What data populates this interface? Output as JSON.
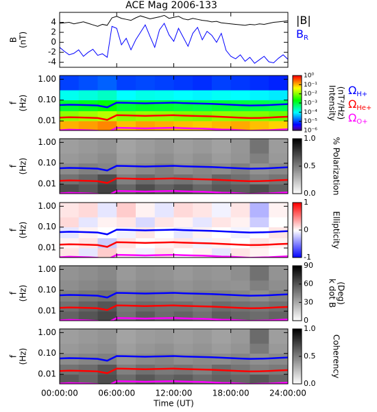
{
  "chart_data": [
    {
      "type": "line",
      "title": "ACE Mag 2006-133",
      "ylabel": [
        "B",
        "(nT)"
      ],
      "x": [
        0,
        0.5,
        1,
        1.5,
        2,
        2.5,
        3,
        3.5,
        4,
        4.5,
        5,
        5.5,
        6,
        6.5,
        7,
        7.5,
        8,
        8.5,
        9,
        9.5,
        10,
        10.5,
        11,
        11.5,
        12,
        12.5,
        13,
        13.5,
        14,
        14.5,
        15,
        15.5,
        16,
        16.5,
        17,
        17.5,
        18,
        18.5,
        19,
        19.5,
        20,
        20.5,
        21,
        21.5,
        22,
        22.5,
        23,
        23.5,
        24
      ],
      "xlim": [
        0,
        24
      ],
      "ylim": [
        -5,
        6
      ],
      "yticks": [
        4,
        2,
        0,
        -2,
        -4
      ],
      "series": [
        {
          "name": "|B|",
          "color": "#000000",
          "values": [
            3.8,
            3.9,
            4.0,
            3.7,
            3.9,
            4.1,
            3.8,
            3.5,
            3.2,
            3.6,
            3.4,
            4.9,
            5.2,
            4.8,
            4.6,
            4.4,
            4.9,
            5.3,
            5.0,
            4.7,
            4.9,
            5.1,
            5.4,
            4.8,
            5.0,
            5.2,
            4.7,
            4.5,
            4.8,
            4.6,
            4.4,
            4.3,
            4.1,
            4.2,
            3.9,
            3.8,
            3.7,
            3.6,
            3.5,
            3.4,
            3.6,
            3.5,
            3.7,
            3.6,
            3.8,
            4.0,
            4.1,
            4.2,
            4.3
          ]
        },
        {
          "name": "B",
          "subscript": "R",
          "color": "#0000ff",
          "values": [
            -1.0,
            -1.8,
            -2.5,
            -2.2,
            -1.5,
            -2.8,
            -2.0,
            -1.4,
            -2.6,
            -2.3,
            -3.0,
            3.2,
            2.8,
            -0.5,
            0.8,
            -1.5,
            0.5,
            2.0,
            3.5,
            1.2,
            -1.0,
            2.5,
            3.8,
            1.5,
            0.2,
            2.8,
            1.0,
            -0.8,
            1.8,
            3.0,
            0.5,
            2.2,
            1.4,
            0.0,
            1.8,
            -1.6,
            -2.8,
            -3.3,
            -2.5,
            -3.8,
            -3.0,
            -4.2,
            -3.5,
            -2.8,
            -3.9,
            -4.1,
            -3.2,
            -2.5,
            -3.4
          ]
        }
      ]
    },
    {
      "type": "heatmap",
      "ylabel": [
        "f",
        "(Hz)"
      ],
      "xlim": [
        0,
        24
      ],
      "ylim": [
        0.0035,
        1.5
      ],
      "ylog": true,
      "yticks": [
        {
          "value": 1,
          "label": "1.00"
        },
        {
          "value": 0.1,
          "label": "0.10"
        },
        {
          "value": 0.01,
          "label": "0.01"
        }
      ],
      "x_bins": [
        0,
        2,
        4,
        6,
        8,
        10,
        12,
        14,
        16,
        18,
        20,
        22,
        24
      ],
      "y_bins": [
        0.0035,
        0.01,
        0.03,
        0.1,
        0.3,
        1.5
      ],
      "z": [
        [
          0.12,
          0.15,
          0.2,
          0.1,
          0.14,
          0.12,
          0.1,
          0.09,
          0.11,
          0.13,
          0.1,
          0.08
        ],
        [
          0.012,
          0.015,
          0.02,
          0.011,
          0.013,
          0.012,
          0.01,
          0.009,
          0.012,
          0.011,
          0.01,
          0.008
        ],
        [
          0.0012,
          0.0015,
          0.002,
          0.0011,
          0.0013,
          0.0012,
          0.001,
          0.0009,
          0.0011,
          0.001,
          0.0009,
          0.0008
        ],
        [
          0.00012,
          0.00015,
          0.0002,
          0.0001,
          0.00013,
          0.00012,
          0.0001,
          9e-05,
          0.00011,
          0.0001,
          9e-05,
          8e-05
        ],
        [
          1e-05,
          1.2e-05,
          1.5e-05,
          1e-05,
          1.1e-05,
          1e-05,
          9e-06,
          8e-06,
          1e-05,
          9e-06,
          8e-06,
          7e-06
        ]
      ],
      "colormap": "rainbow",
      "zlim": [
        1e-06,
        1
      ],
      "zlog": true,
      "zticks": [
        {
          "value": 1,
          "label": "10⁰"
        },
        {
          "value": 0.1,
          "label": "10⁻¹"
        },
        {
          "value": 0.01,
          "label": "10⁻²"
        },
        {
          "value": 0.001,
          "label": "10⁻³"
        },
        {
          "value": 0.0001,
          "label": "10⁻⁴"
        },
        {
          "value": 1e-05,
          "label": "10⁻⁵"
        },
        {
          "value": 1e-06,
          "label": "10⁻⁶"
        }
      ],
      "zlabel": [
        "Intensity",
        "(nT²/Hz)"
      ],
      "x": [
        0,
        1,
        2,
        3,
        4,
        5,
        6,
        7,
        8,
        9,
        10,
        11,
        12,
        13,
        14,
        15,
        16,
        17,
        18,
        19,
        20,
        21,
        22,
        23,
        24
      ],
      "series": [
        {
          "name": "Ω",
          "subscript": "H+",
          "color": "#0000ff",
          "values": [
            0.058,
            0.06,
            0.059,
            0.057,
            0.055,
            0.045,
            0.075,
            0.074,
            0.072,
            0.07,
            0.072,
            0.073,
            0.075,
            0.072,
            0.07,
            0.068,
            0.066,
            0.063,
            0.06,
            0.057,
            0.055,
            0.056,
            0.058,
            0.061,
            0.064
          ]
        },
        {
          "name": "Ω",
          "subscript": "He+",
          "color": "#ff0000",
          "values": [
            0.0145,
            0.015,
            0.0148,
            0.0143,
            0.0138,
            0.0113,
            0.0188,
            0.0185,
            0.018,
            0.0175,
            0.018,
            0.0183,
            0.0188,
            0.018,
            0.0175,
            0.017,
            0.0165,
            0.0158,
            0.015,
            0.0143,
            0.0138,
            0.014,
            0.0145,
            0.0153,
            0.016
          ]
        },
        {
          "name": "Ω",
          "subscript": "O+",
          "color": "#ff00ff",
          "values": [
            0.0036,
            0.0038,
            0.0037,
            0.0036,
            0.0034,
            0.0028,
            0.0047,
            0.0046,
            0.0045,
            0.0044,
            0.0045,
            0.0046,
            0.0047,
            0.0045,
            0.0044,
            0.0043,
            0.0041,
            0.0039,
            0.0038,
            0.0036,
            0.0034,
            0.0035,
            0.0036,
            0.0038,
            0.004
          ]
        }
      ]
    },
    {
      "type": "heatmap",
      "ylabel": [
        "f",
        "(Hz)"
      ],
      "xlim": [
        0,
        24
      ],
      "ylim": [
        0.0035,
        1.5
      ],
      "ylog": true,
      "yticks": [
        {
          "value": 1,
          "label": "1.00"
        },
        {
          "value": 0.1,
          "label": "0.10"
        },
        {
          "value": 0.01,
          "label": "0.01"
        }
      ],
      "x_bins": [
        0,
        2,
        4,
        6,
        8,
        10,
        12,
        14,
        16,
        18,
        20,
        22,
        24
      ],
      "y_bins": [
        0.0035,
        0.01,
        0.03,
        0.1,
        0.3,
        1.5
      ],
      "z": [
        [
          0.7,
          0.65,
          0.75,
          0.6,
          0.7,
          0.62,
          0.68,
          0.6,
          0.66,
          0.64,
          0.7,
          0.62
        ],
        [
          0.55,
          0.6,
          0.7,
          0.5,
          0.58,
          0.52,
          0.55,
          0.5,
          0.6,
          0.56,
          0.5,
          0.54
        ],
        [
          0.45,
          0.5,
          0.48,
          0.42,
          0.46,
          0.5,
          0.44,
          0.47,
          0.45,
          0.5,
          0.43,
          0.46
        ],
        [
          0.4,
          0.42,
          0.45,
          0.38,
          0.41,
          0.44,
          0.4,
          0.43,
          0.39,
          0.42,
          0.5,
          0.4
        ],
        [
          0.38,
          0.4,
          0.42,
          0.36,
          0.39,
          0.41,
          0.38,
          0.4,
          0.37,
          0.41,
          0.55,
          0.39
        ]
      ],
      "colormap": "gray",
      "zlim": [
        0,
        1
      ],
      "zticks": [
        {
          "value": 0,
          "label": "0.0"
        },
        {
          "value": 0.5,
          "label": "0.5"
        },
        {
          "value": 1,
          "label": "1.0"
        }
      ],
      "zlabel": [
        "% Polarization"
      ]
    },
    {
      "type": "heatmap",
      "ylabel": [
        "f",
        "(Hz)"
      ],
      "xlim": [
        0,
        24
      ],
      "ylim": [
        0.0035,
        1.5
      ],
      "ylog": true,
      "yticks": [
        {
          "value": 1,
          "label": "1.00"
        },
        {
          "value": 0.1,
          "label": "0.10"
        },
        {
          "value": 0.01,
          "label": "0.01"
        }
      ],
      "x_bins": [
        0,
        2,
        4,
        6,
        8,
        10,
        12,
        14,
        16,
        18,
        20,
        22,
        24
      ],
      "y_bins": [
        0.0035,
        0.01,
        0.03,
        0.1,
        0.3,
        1.5
      ],
      "z": [
        [
          0.1,
          -0.1,
          0.2,
          0.05,
          -0.05,
          0.1,
          0.0,
          0.05,
          -0.1,
          0.1,
          0.05,
          0.0
        ],
        [
          0.05,
          0.1,
          -0.2,
          0.1,
          0.0,
          0.05,
          0.1,
          -0.05,
          0.05,
          0.0,
          0.1,
          0.05
        ],
        [
          -0.1,
          0.05,
          0.0,
          -0.05,
          0.1,
          0.0,
          -0.1,
          0.05,
          0.0,
          -0.05,
          0.0,
          0.1
        ],
        [
          0.15,
          -0.1,
          0.05,
          0.1,
          -0.15,
          0.1,
          0.05,
          -0.1,
          0.1,
          0.05,
          -0.2,
          0.0
        ],
        [
          0.1,
          0.15,
          -0.1,
          0.2,
          0.05,
          -0.1,
          0.15,
          0.1,
          -0.05,
          0.1,
          -0.3,
          0.05
        ]
      ],
      "colormap": "bwr",
      "zlim": [
        -1,
        1
      ],
      "zticks": [
        1,
        0,
        -1
      ],
      "zlabel": [
        "Ellipticity"
      ]
    },
    {
      "type": "heatmap",
      "ylabel": [
        "f",
        "(Hz)"
      ],
      "xlim": [
        0,
        24
      ],
      "ylim": [
        0.0035,
        1.5
      ],
      "ylog": true,
      "yticks": [
        {
          "value": 1,
          "label": "1.00"
        },
        {
          "value": 0.1,
          "label": "0.10"
        },
        {
          "value": 0.01,
          "label": "0.01"
        }
      ],
      "x_bins": [
        0,
        2,
        4,
        6,
        8,
        10,
        12,
        14,
        16,
        18,
        20,
        22,
        24
      ],
      "y_bins": [
        0.0035,
        0.01,
        0.03,
        0.1,
        0.3,
        1.5
      ],
      "z": [
        [
          55,
          60,
          65,
          50,
          58,
          52,
          55,
          50,
          57,
          54,
          52,
          55
        ],
        [
          50,
          55,
          60,
          48,
          52,
          50,
          50,
          47,
          52,
          50,
          48,
          50
        ],
        [
          45,
          48,
          50,
          42,
          46,
          44,
          42,
          44,
          45,
          43,
          40,
          44
        ],
        [
          40,
          42,
          44,
          38,
          41,
          40,
          38,
          40,
          39,
          38,
          45,
          40
        ],
        [
          38,
          40,
          42,
          36,
          39,
          38,
          36,
          38,
          37,
          40,
          50,
          38
        ]
      ],
      "colormap": "gray",
      "zlim": [
        0,
        90
      ],
      "zticks": [
        90,
        60,
        30,
        0
      ],
      "zlabel": [
        "k dot B",
        "(Deg)"
      ]
    },
    {
      "type": "heatmap",
      "ylabel": [
        "f",
        "(Hz)"
      ],
      "xlim": [
        0,
        24
      ],
      "ylim": [
        0.0035,
        1.5
      ],
      "ylog": true,
      "yticks": [
        {
          "value": 1,
          "label": "1.00"
        },
        {
          "value": 0.1,
          "label": "0.10"
        },
        {
          "value": 0.01,
          "label": "0.01"
        }
      ],
      "x_bins": [
        0,
        2,
        4,
        6,
        8,
        10,
        12,
        14,
        16,
        18,
        20,
        22,
        24
      ],
      "y_bins": [
        0.0035,
        0.01,
        0.03,
        0.1,
        0.3,
        1.5
      ],
      "z": [
        [
          0.65,
          0.6,
          0.7,
          0.58,
          0.66,
          0.6,
          0.64,
          0.58,
          0.62,
          0.6,
          0.66,
          0.6
        ],
        [
          0.55,
          0.58,
          0.66,
          0.5,
          0.56,
          0.52,
          0.54,
          0.5,
          0.58,
          0.54,
          0.5,
          0.52
        ],
        [
          0.45,
          0.48,
          0.5,
          0.42,
          0.46,
          0.48,
          0.44,
          0.46,
          0.45,
          0.48,
          0.44,
          0.46
        ],
        [
          0.4,
          0.42,
          0.44,
          0.38,
          0.41,
          0.43,
          0.4,
          0.42,
          0.39,
          0.42,
          0.52,
          0.4
        ],
        [
          0.38,
          0.4,
          0.42,
          0.36,
          0.39,
          0.4,
          0.38,
          0.4,
          0.37,
          0.4,
          0.58,
          0.38
        ]
      ],
      "colormap": "gray",
      "zlim": [
        0,
        1
      ],
      "zticks": [
        {
          "value": 0,
          "label": "0.0"
        },
        {
          "value": 0.5,
          "label": "0.5"
        },
        {
          "value": 1,
          "label": "1.0"
        }
      ],
      "zlabel": [
        "Coherency"
      ],
      "xticks": [
        {
          "value": 0,
          "label": "00:00:00"
        },
        {
          "value": 6,
          "label": "06:00:00"
        },
        {
          "value": 12,
          "label": "12:00:00"
        },
        {
          "value": 18,
          "label": "18:00:00"
        },
        {
          "value": 24,
          "label": "24:00:00"
        }
      ],
      "xlabel": "Time (UT)"
    }
  ]
}
